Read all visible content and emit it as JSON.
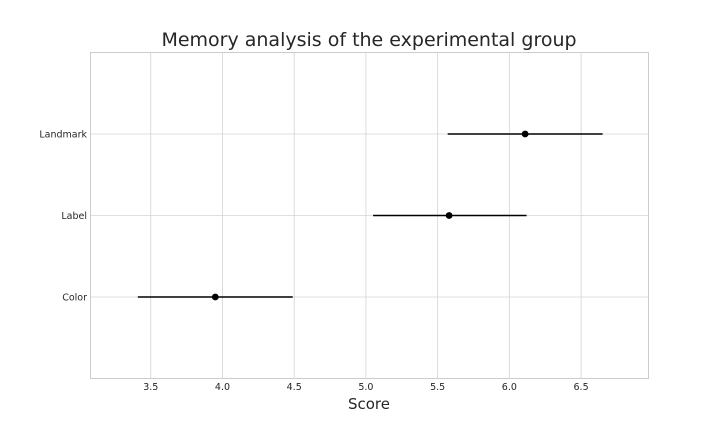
{
  "chart_data": {
    "type": "scatter",
    "title": "Memory analysis of the experimental group",
    "xlabel": "Score",
    "ylabel": "",
    "xlim": [
      3.08,
      6.97
    ],
    "xticks": [
      "3.5",
      "4.0",
      "4.5",
      "5.0",
      "5.5",
      "6.0",
      "6.5"
    ],
    "categories": [
      "Color",
      "Label",
      "Landmark"
    ],
    "points": [
      {
        "category": "Color",
        "value": 3.95,
        "lower": 3.41,
        "upper": 4.49
      },
      {
        "category": "Label",
        "value": 5.58,
        "lower": 5.05,
        "upper": 6.12
      },
      {
        "category": "Landmark",
        "value": 6.11,
        "lower": 5.57,
        "upper": 6.65
      }
    ],
    "grid": true,
    "legend": "none",
    "colors": {
      "marker": "#000000",
      "errorbar": "#000000",
      "grid": "#d4d4d4",
      "frame": "#cccccc",
      "text": "#262626"
    }
  }
}
